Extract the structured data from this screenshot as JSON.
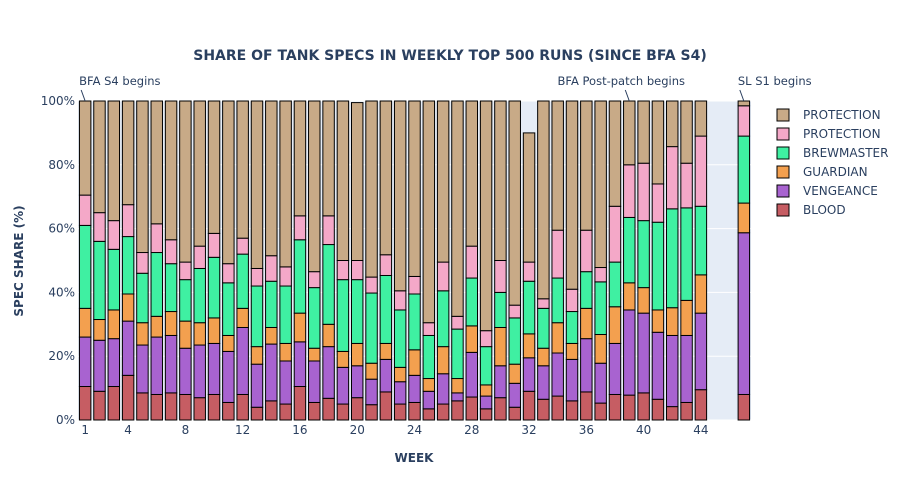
{
  "chart_data": {
    "type": "bar",
    "stacked": true,
    "title": "SHARE OF TANK SPECS IN WEEKLY TOP 500 RUNS (SINCE BFA S4)",
    "xlabel": "WEEK",
    "ylabel": "SPEC SHARE (%)",
    "ylim": [
      0,
      100
    ],
    "y_ticks": [
      "0%",
      "20%",
      "40%",
      "60%",
      "80%",
      "100%"
    ],
    "y_tick_values": [
      0,
      20,
      40,
      60,
      80,
      100
    ],
    "x_tick_labels": [
      "1",
      "4",
      "8",
      "12",
      "16",
      "20",
      "24",
      "28",
      "32",
      "36",
      "40",
      "44"
    ],
    "x_tick_values": [
      1,
      4,
      8,
      12,
      16,
      20,
      24,
      28,
      32,
      36,
      40,
      44
    ],
    "weeks": [
      1,
      2,
      3,
      4,
      5,
      6,
      7,
      8,
      9,
      10,
      11,
      12,
      13,
      14,
      15,
      16,
      17,
      18,
      19,
      20,
      21,
      22,
      23,
      24,
      25,
      26,
      27,
      28,
      29,
      30,
      31,
      32,
      33,
      34,
      35,
      36,
      37,
      38,
      39,
      40,
      41,
      42,
      43,
      44,
      47
    ],
    "shaded_week": 47,
    "legend": {
      "placement": "right",
      "entries": [
        "PROTECTION",
        "PROTECTION",
        "BREWMASTER",
        "GUARDIAN",
        "VENGEANCE",
        "BLOOD"
      ]
    },
    "annotations": [
      {
        "text": "BFA S4 begins",
        "week": 1
      },
      {
        "text": "BFA Post-patch begins",
        "week": 39
      },
      {
        "text": "SL S1 begins",
        "week": 47
      }
    ],
    "colors": {
      "BLOOD": "#c65d63",
      "VENGEANCE": "#a863d0",
      "GUARDIAN": "#f3a04f",
      "BREWMASTER": "#3ff0a2",
      "PROTECTION_PALADIN": "#f4a8c8",
      "PROTECTION_WARRIOR": "#c8aa87",
      "plot_bg": "#e5ecf6",
      "bar_outline": "#000000"
    },
    "series": [
      {
        "name": "BLOOD",
        "values": [
          10.5,
          9,
          10.5,
          14,
          8.5,
          8,
          8.5,
          8,
          7,
          8,
          5.5,
          8,
          4,
          6,
          5,
          10.5,
          5.5,
          6.8,
          5,
          7,
          4.8,
          8.8,
          5,
          5.5,
          3.5,
          5,
          6,
          7.2,
          3.5,
          7,
          4,
          9,
          6.5,
          7.5,
          6,
          8.8,
          5.3,
          8,
          7.8,
          8.5,
          6.5,
          4.2,
          5.5,
          9.5,
          8
        ]
      },
      {
        "name": "VENGEANCE",
        "values": [
          15.5,
          16,
          15,
          17,
          15,
          18,
          18,
          14.5,
          16.5,
          16,
          16,
          21,
          13.5,
          17.8,
          13.5,
          14,
          13,
          16.2,
          11.5,
          10,
          8,
          10.2,
          7,
          8.5,
          5.5,
          9.5,
          2.5,
          14,
          4,
          10,
          7.5,
          10.5,
          10.5,
          13.5,
          13,
          16.7,
          12.5,
          16,
          26.7,
          25,
          21,
          22.3,
          21,
          24,
          50.7
        ]
      },
      {
        "name": "GUARDIAN",
        "values": [
          9,
          6.5,
          9,
          8.5,
          7,
          6.5,
          7.5,
          8.5,
          7,
          8,
          5,
          6,
          5.5,
          5.2,
          5.5,
          9,
          4,
          7,
          5,
          7,
          5,
          5,
          4.5,
          8,
          4,
          8.5,
          4.5,
          8.3,
          3.5,
          12,
          6,
          7.5,
          5.5,
          9.5,
          5,
          9.5,
          9,
          11.5,
          8.5,
          8,
          7,
          8.7,
          11,
          12,
          9.3
        ]
      },
      {
        "name": "BREWMASTER",
        "values": [
          26,
          24.5,
          19,
          18,
          15.5,
          20,
          15,
          13,
          17,
          19,
          16.5,
          17,
          19,
          14.5,
          18,
          23,
          19,
          25,
          22.5,
          20,
          22,
          21.3,
          18,
          17.5,
          13.5,
          17.5,
          15.5,
          15,
          12,
          11,
          14.5,
          16.5,
          12.5,
          14,
          10,
          11.5,
          16.5,
          14,
          20.5,
          21,
          27.5,
          31,
          29,
          21.5,
          21
        ]
      },
      {
        "name": "PROTECTION",
        "values": [
          9.5,
          9,
          9,
          10,
          6.5,
          9,
          7.5,
          5.5,
          7,
          7.5,
          6,
          5,
          5.5,
          8,
          6,
          7.5,
          5,
          9,
          6,
          6,
          5,
          6.5,
          6,
          5.5,
          4,
          9,
          4,
          10,
          5,
          10,
          4,
          6,
          3,
          15,
          7,
          13,
          4.5,
          17.5,
          16.5,
          18,
          12,
          19.5,
          14,
          22,
          9.5
        ]
      },
      {
        "name": "PROTECTION",
        "values": [
          29.5,
          35,
          37.5,
          32.5,
          47.5,
          38.5,
          43.5,
          50.5,
          45.5,
          41.5,
          51,
          43,
          52.5,
          48.5,
          52,
          36,
          53.5,
          36,
          50,
          49.5,
          55.2,
          48.2,
          59.5,
          55,
          69.5,
          50.5,
          67.5,
          45.5,
          72,
          50,
          64,
          40.5,
          62,
          40.5,
          59,
          40.5,
          52.2,
          33,
          20,
          19.5,
          26,
          14.3,
          19.5,
          11,
          1.5
        ]
      }
    ]
  }
}
